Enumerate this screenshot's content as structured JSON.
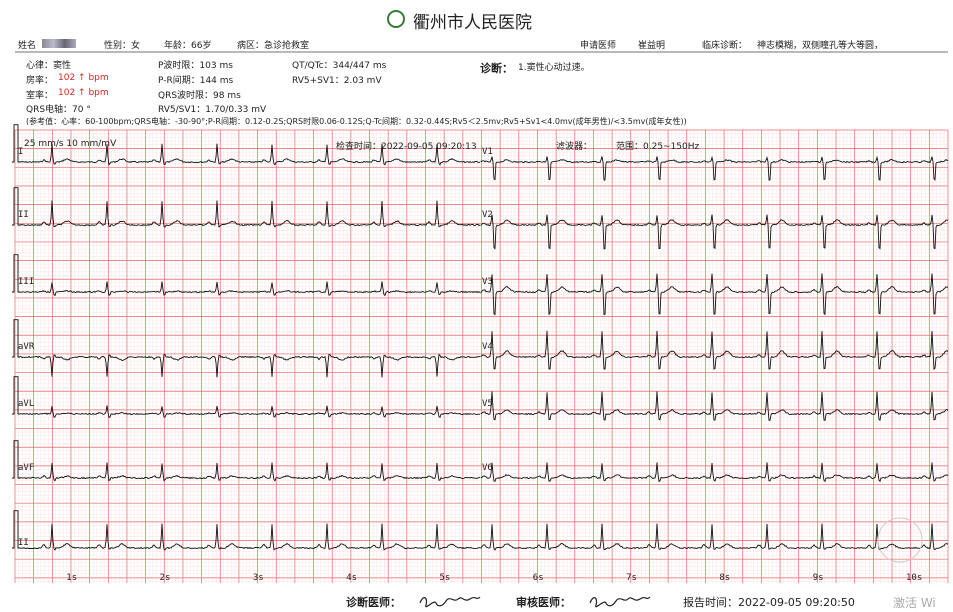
{
  "header": {
    "hospital": "衢州市人民医院"
  },
  "patient": {
    "name_label": "姓名",
    "sex": "性别：女",
    "age": "年龄：66岁",
    "ward": "病区：急诊抢救室",
    "doctor_label": "申请医师",
    "doctor": "崔益明",
    "diagnosis_label": "临床诊断：",
    "diagnosis": "神志模糊，双侧瞳孔等大等圆，"
  },
  "measurements": {
    "rhythm": "心律：窦性",
    "atrial_label": "房率：",
    "atrial_value": "102 ↑ bpm",
    "ventricular_label": "室率：",
    "ventricular_value": "102 ↑ bpm",
    "axis": "QRS电轴：70 °",
    "p_duration": "P波时限：103 ms",
    "pr_interval": "P-R间期：144 ms",
    "qrs_duration": "QRS波时限：98 ms",
    "rv5_sv1": "RV5/SV1：1.70/0.33 mV",
    "qt_qtc": "QT/QTc：344/447 ms",
    "rv5_plus_sv1": "RV5+SV1：2.03 mV"
  },
  "interpretation": {
    "label": "诊断：",
    "text": "1.窦性心动过速。"
  },
  "reference": "(参考值：心率：60-100bpm;QRS电轴：-30-90°;P-R间期：0.12-0.2S;QRS时限0.06-0.12S;Q-Tc间期：0.32-0.44S;Rv5＜2.5mv;Rv5+Sv1<4.0mv(成年男性)/<3.5mv(成年女性))",
  "ecg": {
    "settings": "25 mm/s 10 mm/mV",
    "exam_time": "检查时间：2022-09-05 09:20:13",
    "filter": "滤波器：",
    "range": "范围：0.25~150Hz",
    "limb_leads": [
      "I",
      "II",
      "III",
      "aVR",
      "aVL",
      "aVF"
    ],
    "chest_leads": [
      "V1",
      "V2",
      "V3",
      "V4",
      "V5",
      "V6"
    ],
    "rhythm_lead": "II",
    "seconds": [
      "1s",
      "2s",
      "3s",
      "4s",
      "5s",
      "6s",
      "7s",
      "8s",
      "9s",
      "10s"
    ]
  },
  "footer": {
    "diagnosing": "诊断医师：",
    "reviewing": "审核医师：",
    "report_time": "报告时间：2022-09-05 09:20:50"
  },
  "watermark": "激活 Wi"
}
